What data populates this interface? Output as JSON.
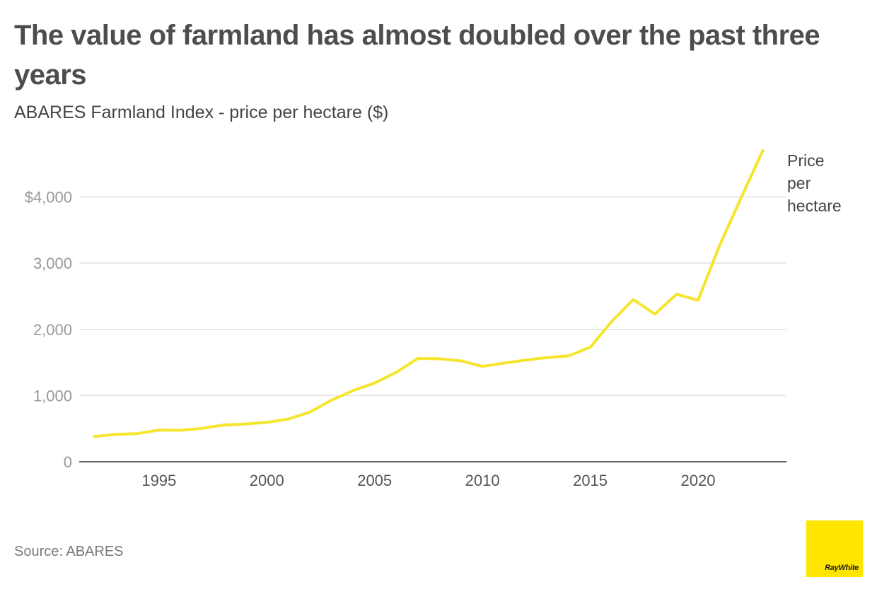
{
  "title": "The value of farmland has almost doubled over the past three years",
  "subtitle": "ABARES Farmland Index - price per hectare ($)",
  "source": "Source: ABARES",
  "logo_text": "RayWhite",
  "colors": {
    "line": "#f5e52c",
    "grid": "#e2e2e2",
    "axis": "#333333",
    "y_tick_text": "#999999",
    "x_tick_text": "#555555",
    "label_text": "#444444",
    "logo_bg": "#ffe600"
  },
  "chart_data": {
    "type": "line",
    "x": [
      1992,
      1993,
      1994,
      1995,
      1996,
      1997,
      1998,
      1999,
      2000,
      2001,
      2002,
      2003,
      2004,
      2005,
      2006,
      2007,
      2008,
      2009,
      2010,
      2011,
      2012,
      2013,
      2014,
      2015,
      2016,
      2017,
      2018,
      2019,
      2020,
      2021,
      2022,
      2023
    ],
    "series": [
      {
        "name": "Price per hectare",
        "label_lines": [
          "Price",
          "per",
          "hectare"
        ],
        "values": [
          380,
          415,
          425,
          480,
          475,
          505,
          555,
          570,
          595,
          645,
          750,
          930,
          1075,
          1190,
          1350,
          1560,
          1555,
          1525,
          1440,
          1490,
          1535,
          1575,
          1600,
          1730,
          2120,
          2450,
          2230,
          2530,
          2440,
          3270,
          3990,
          4700
        ]
      }
    ],
    "xlabel": "",
    "ylabel": "",
    "xlim": [
      1991.3,
      2024.1
    ],
    "ylim": [
      0,
      4700
    ],
    "x_ticks": [
      1995,
      2000,
      2005,
      2010,
      2015,
      2020
    ],
    "x_tick_labels": [
      "1995",
      "2000",
      "2005",
      "2010",
      "2015",
      "2020"
    ],
    "y_ticks": [
      0,
      1000,
      2000,
      3000,
      4000
    ],
    "y_tick_labels": [
      "0",
      "1,000",
      "2,000",
      "3,000",
      "$4,000"
    ],
    "grid": true,
    "legend": "direct label at end of line"
  }
}
